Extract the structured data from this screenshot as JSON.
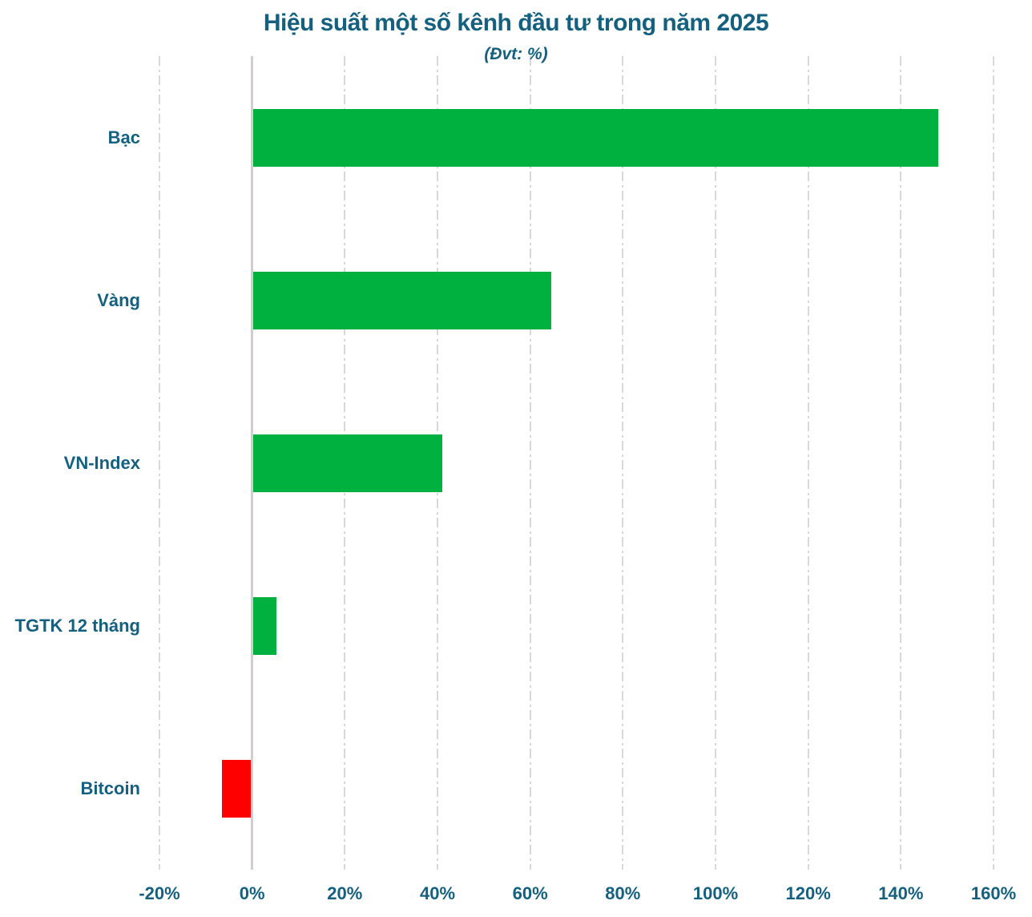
{
  "title": "Hiệu suất một số kênh đầu tư trong năm 2025",
  "subtitle": "(Đvt: %)",
  "chart_data": {
    "type": "bar",
    "orientation": "horizontal",
    "title": "Hiệu suất một số kênh đầu tư trong năm 2025",
    "subtitle": "(Đvt: %)",
    "categories": [
      "Bạc",
      "Vàng",
      "VN-Index",
      "TGTK 12 tháng",
      "Bitcoin"
    ],
    "values": [
      148,
      64.5,
      41,
      5.3,
      -6.5
    ],
    "unit": "%",
    "xlabel": "",
    "ylabel": "",
    "xlim": [
      -20,
      160
    ],
    "tick_step": 20,
    "tick_labels": [
      "-20%",
      "0%",
      "20%",
      "40%",
      "60%",
      "80%",
      "100%",
      "120%",
      "140%",
      "160%"
    ],
    "grid": "vertical dash-dot, zero axis solid",
    "legend": "none",
    "colors": {
      "positive_bar": "#00B140",
      "negative_bar": "#FF0000",
      "text": "#15607E",
      "gridline": "#D9D9D9",
      "zero_line": "#D0CECE",
      "background": "#FFFFFF"
    }
  }
}
